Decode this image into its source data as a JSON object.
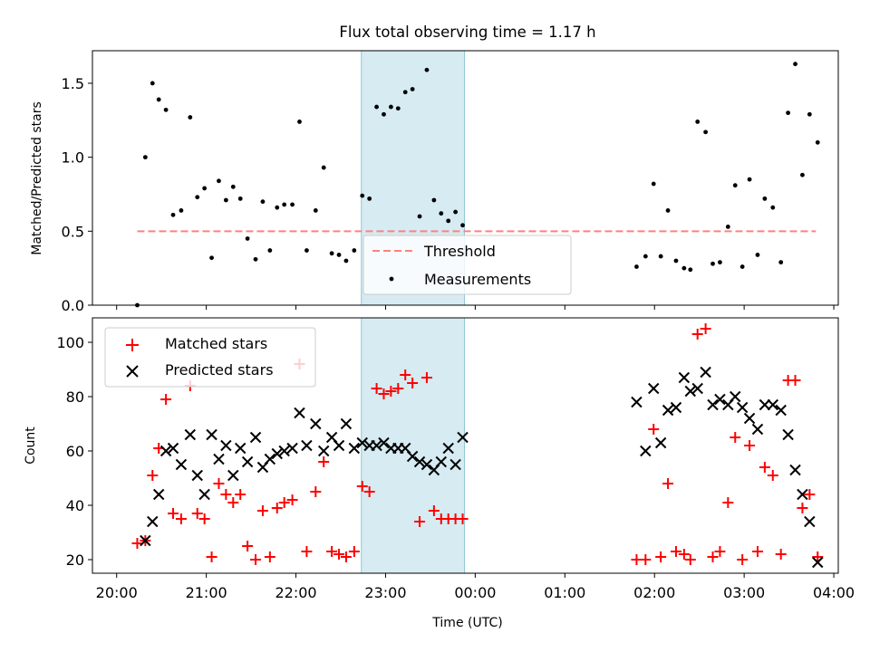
{
  "figure": {
    "title": "Flux total observing time = 1.17 h"
  },
  "chart_data": [
    {
      "type": "scatter",
      "title": "Flux total observing time = 1.17 h",
      "xlabel": "",
      "ylabel": "Matched/Predicted stars",
      "xlim": [
        -0.27,
        8.05
      ],
      "ylim": [
        0,
        1.72
      ],
      "yticks": [
        0.0,
        0.5,
        1.0,
        1.5
      ],
      "ytick_labels": [
        "0.0",
        "0.5",
        "1.0",
        "1.5"
      ],
      "highlight_span": {
        "x0": 2.73,
        "x1": 3.88
      },
      "threshold": {
        "name": "Threshold",
        "y": 0.5,
        "x0": 0.23,
        "x1": 7.8,
        "color": "#ff8080"
      },
      "legend": {
        "position": "lower-center",
        "entries": [
          "Threshold",
          "Measurements"
        ]
      },
      "series": [
        {
          "name": "Measurements",
          "color": "#000000",
          "points": [
            [
              0.23,
              0.0
            ],
            [
              0.32,
              1.0
            ],
            [
              0.4,
              1.5
            ],
            [
              0.47,
              1.39
            ],
            [
              0.55,
              1.32
            ],
            [
              0.63,
              0.61
            ],
            [
              0.72,
              0.64
            ],
            [
              0.82,
              1.27
            ],
            [
              0.9,
              0.73
            ],
            [
              0.98,
              0.79
            ],
            [
              1.06,
              0.32
            ],
            [
              1.14,
              0.84
            ],
            [
              1.22,
              0.71
            ],
            [
              1.3,
              0.8
            ],
            [
              1.38,
              0.72
            ],
            [
              1.46,
              0.45
            ],
            [
              1.55,
              0.31
            ],
            [
              1.63,
              0.7
            ],
            [
              1.71,
              0.37
            ],
            [
              1.79,
              0.66
            ],
            [
              1.87,
              0.68
            ],
            [
              1.96,
              0.68
            ],
            [
              2.04,
              1.24
            ],
            [
              2.12,
              0.37
            ],
            [
              2.22,
              0.64
            ],
            [
              2.31,
              0.93
            ],
            [
              2.4,
              0.35
            ],
            [
              2.48,
              0.34
            ],
            [
              2.56,
              0.3
            ],
            [
              2.65,
              0.37
            ],
            [
              2.74,
              0.74
            ],
            [
              2.82,
              0.72
            ],
            [
              2.9,
              1.34
            ],
            [
              2.98,
              1.29
            ],
            [
              3.06,
              1.34
            ],
            [
              3.14,
              1.33
            ],
            [
              3.22,
              1.44
            ],
            [
              3.3,
              1.46
            ],
            [
              3.38,
              0.6
            ],
            [
              3.46,
              1.59
            ],
            [
              3.54,
              0.71
            ],
            [
              3.62,
              0.62
            ],
            [
              3.7,
              0.57
            ],
            [
              3.78,
              0.63
            ],
            [
              3.86,
              0.54
            ],
            [
              5.8,
              0.26
            ],
            [
              5.9,
              0.33
            ],
            [
              5.99,
              0.82
            ],
            [
              6.07,
              0.33
            ],
            [
              6.15,
              0.64
            ],
            [
              6.24,
              0.3
            ],
            [
              6.33,
              0.25
            ],
            [
              6.4,
              0.24
            ],
            [
              6.48,
              1.24
            ],
            [
              6.57,
              1.17
            ],
            [
              6.65,
              0.28
            ],
            [
              6.73,
              0.29
            ],
            [
              6.82,
              0.53
            ],
            [
              6.9,
              0.81
            ],
            [
              6.98,
              0.26
            ],
            [
              7.06,
              0.85
            ],
            [
              7.15,
              0.34
            ],
            [
              7.23,
              0.72
            ],
            [
              7.32,
              0.66
            ],
            [
              7.41,
              0.29
            ],
            [
              7.49,
              1.3
            ],
            [
              7.57,
              1.63
            ],
            [
              7.65,
              0.88
            ],
            [
              7.73,
              1.29
            ],
            [
              7.82,
              1.1
            ]
          ]
        }
      ]
    },
    {
      "type": "scatter",
      "title": "",
      "xlabel": "Time (UTC)",
      "ylabel": "Count",
      "xlim": [
        -0.27,
        8.05
      ],
      "ylim": [
        15,
        109
      ],
      "xticks": [
        0,
        1,
        2,
        3,
        4,
        5,
        6,
        7,
        8
      ],
      "xtick_labels": [
        "20:00",
        "21:00",
        "22:00",
        "23:00",
        "00:00",
        "01:00",
        "02:00",
        "03:00",
        "04:00"
      ],
      "yticks": [
        20,
        40,
        60,
        80,
        100
      ],
      "ytick_labels": [
        "20",
        "40",
        "60",
        "80",
        "100"
      ],
      "highlight_span": {
        "x0": 2.73,
        "x1": 3.88
      },
      "legend": {
        "position": "upper-left",
        "entries": [
          "Matched stars",
          "Predicted stars"
        ]
      },
      "series": [
        {
          "name": "Matched stars",
          "marker": "plus",
          "color": "#ff0000",
          "points": [
            [
              0.23,
              26
            ],
            [
              0.32,
              27
            ],
            [
              0.4,
              51
            ],
            [
              0.47,
              61
            ],
            [
              0.55,
              79
            ],
            [
              0.63,
              37
            ],
            [
              0.72,
              35
            ],
            [
              0.82,
              84
            ],
            [
              0.9,
              37
            ],
            [
              0.98,
              35
            ],
            [
              1.06,
              21
            ],
            [
              1.14,
              48
            ],
            [
              1.22,
              44
            ],
            [
              1.3,
              41
            ],
            [
              1.38,
              44
            ],
            [
              1.46,
              25
            ],
            [
              1.55,
              20
            ],
            [
              1.63,
              38
            ],
            [
              1.71,
              21
            ],
            [
              1.79,
              39
            ],
            [
              1.87,
              41
            ],
            [
              1.96,
              42
            ],
            [
              2.04,
              92
            ],
            [
              2.12,
              23
            ],
            [
              2.22,
              45
            ],
            [
              2.31,
              56
            ],
            [
              2.4,
              23
            ],
            [
              2.48,
              22
            ],
            [
              2.56,
              21
            ],
            [
              2.65,
              23
            ],
            [
              2.74,
              47
            ],
            [
              2.82,
              45
            ],
            [
              2.9,
              83
            ],
            [
              2.98,
              81
            ],
            [
              3.06,
              82
            ],
            [
              3.14,
              83
            ],
            [
              3.22,
              88
            ],
            [
              3.3,
              85
            ],
            [
              3.38,
              34
            ],
            [
              3.46,
              87
            ],
            [
              3.54,
              38
            ],
            [
              3.62,
              35
            ],
            [
              3.7,
              35
            ],
            [
              3.78,
              35
            ],
            [
              3.86,
              35
            ],
            [
              5.8,
              20
            ],
            [
              5.9,
              20
            ],
            [
              5.99,
              68
            ],
            [
              6.07,
              21
            ],
            [
              6.15,
              48
            ],
            [
              6.24,
              23
            ],
            [
              6.33,
              22
            ],
            [
              6.4,
              20
            ],
            [
              6.48,
              103
            ],
            [
              6.57,
              105
            ],
            [
              6.65,
              21
            ],
            [
              6.73,
              23
            ],
            [
              6.82,
              41
            ],
            [
              6.9,
              65
            ],
            [
              6.98,
              20
            ],
            [
              7.06,
              62
            ],
            [
              7.15,
              23
            ],
            [
              7.23,
              54
            ],
            [
              7.32,
              51
            ],
            [
              7.41,
              22
            ],
            [
              7.49,
              86
            ],
            [
              7.57,
              86
            ],
            [
              7.65,
              39
            ],
            [
              7.73,
              44
            ],
            [
              7.82,
              21
            ]
          ]
        },
        {
          "name": "Predicted stars",
          "marker": "x",
          "color": "#000000",
          "points": [
            [
              0.32,
              27
            ],
            [
              0.4,
              34
            ],
            [
              0.47,
              44
            ],
            [
              0.55,
              60
            ],
            [
              0.63,
              61
            ],
            [
              0.72,
              55
            ],
            [
              0.82,
              66
            ],
            [
              0.9,
              51
            ],
            [
              0.98,
              44
            ],
            [
              1.06,
              66
            ],
            [
              1.14,
              57
            ],
            [
              1.22,
              62
            ],
            [
              1.3,
              51
            ],
            [
              1.38,
              61
            ],
            [
              1.46,
              56
            ],
            [
              1.55,
              65
            ],
            [
              1.63,
              54
            ],
            [
              1.71,
              57
            ],
            [
              1.79,
              59
            ],
            [
              1.87,
              60
            ],
            [
              1.96,
              61
            ],
            [
              2.04,
              74
            ],
            [
              2.12,
              62
            ],
            [
              2.22,
              70
            ],
            [
              2.31,
              60
            ],
            [
              2.4,
              65
            ],
            [
              2.48,
              62
            ],
            [
              2.56,
              70
            ],
            [
              2.65,
              61
            ],
            [
              2.74,
              63
            ],
            [
              2.82,
              62
            ],
            [
              2.9,
              62
            ],
            [
              2.98,
              63
            ],
            [
              3.06,
              61
            ],
            [
              3.14,
              61
            ],
            [
              3.22,
              61
            ],
            [
              3.3,
              58
            ],
            [
              3.38,
              56
            ],
            [
              3.46,
              55
            ],
            [
              3.54,
              53
            ],
            [
              3.62,
              56
            ],
            [
              3.7,
              61
            ],
            [
              3.78,
              55
            ],
            [
              3.86,
              65
            ],
            [
              5.8,
              78
            ],
            [
              5.9,
              60
            ],
            [
              5.99,
              83
            ],
            [
              6.07,
              63
            ],
            [
              6.15,
              75
            ],
            [
              6.24,
              76
            ],
            [
              6.33,
              87
            ],
            [
              6.4,
              82
            ],
            [
              6.48,
              83
            ],
            [
              6.57,
              89
            ],
            [
              6.65,
              77
            ],
            [
              6.73,
              79
            ],
            [
              6.82,
              77
            ],
            [
              6.9,
              80
            ],
            [
              6.98,
              76
            ],
            [
              7.06,
              72
            ],
            [
              7.15,
              68
            ],
            [
              7.23,
              77
            ],
            [
              7.32,
              77
            ],
            [
              7.41,
              75
            ],
            [
              7.49,
              66
            ],
            [
              7.57,
              53
            ],
            [
              7.65,
              44
            ],
            [
              7.73,
              34
            ],
            [
              7.82,
              19
            ]
          ]
        }
      ]
    }
  ]
}
